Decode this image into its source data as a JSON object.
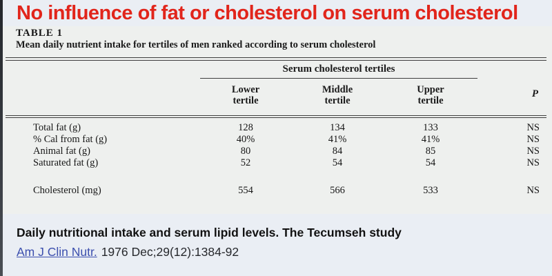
{
  "title": "No influence of fat or cholesterol on serum cholesterol",
  "table": {
    "label": "TABLE 1",
    "caption": "Mean daily nutrient intake for tertiles of men ranked according to serum cholesterol",
    "group_header": "Serum cholesterol tertiles",
    "columns": [
      "Lower\ntertile",
      "Middle\ntertile",
      "Upper\ntertile"
    ],
    "p_column_label": "P",
    "rows": [
      {
        "label": "Total fat (g)",
        "lower": "128",
        "middle": "134",
        "upper": "133",
        "p": "NS"
      },
      {
        "label": "% Cal from fat (g)",
        "lower": "40%",
        "middle": "41%",
        "upper": "41%",
        "p": "NS"
      },
      {
        "label": "Animal fat (g)",
        "lower": "80",
        "middle": "84",
        "upper": "85",
        "p": "NS"
      },
      {
        "label": "Saturated fat (g)",
        "lower": "52",
        "middle": "54",
        "upper": "54",
        "p": "NS"
      }
    ],
    "summary_row": {
      "label": "Cholesterol (mg)",
      "lower": "554",
      "middle": "566",
      "upper": "533",
      "p": "NS"
    }
  },
  "footer": {
    "study_title": "Daily nutritional intake and serum lipid levels. The Tecumseh study",
    "journal_link": "Am J Clin Nutr.",
    "citation_rest": "1976 Dec;29(12):1384-92"
  },
  "colors": {
    "title_red": "#e1251b",
    "link_blue": "#3c4fae",
    "slide_background": "#eaeef4",
    "scan_background": "#eef0ee",
    "rule_color": "#3d3d3d"
  }
}
